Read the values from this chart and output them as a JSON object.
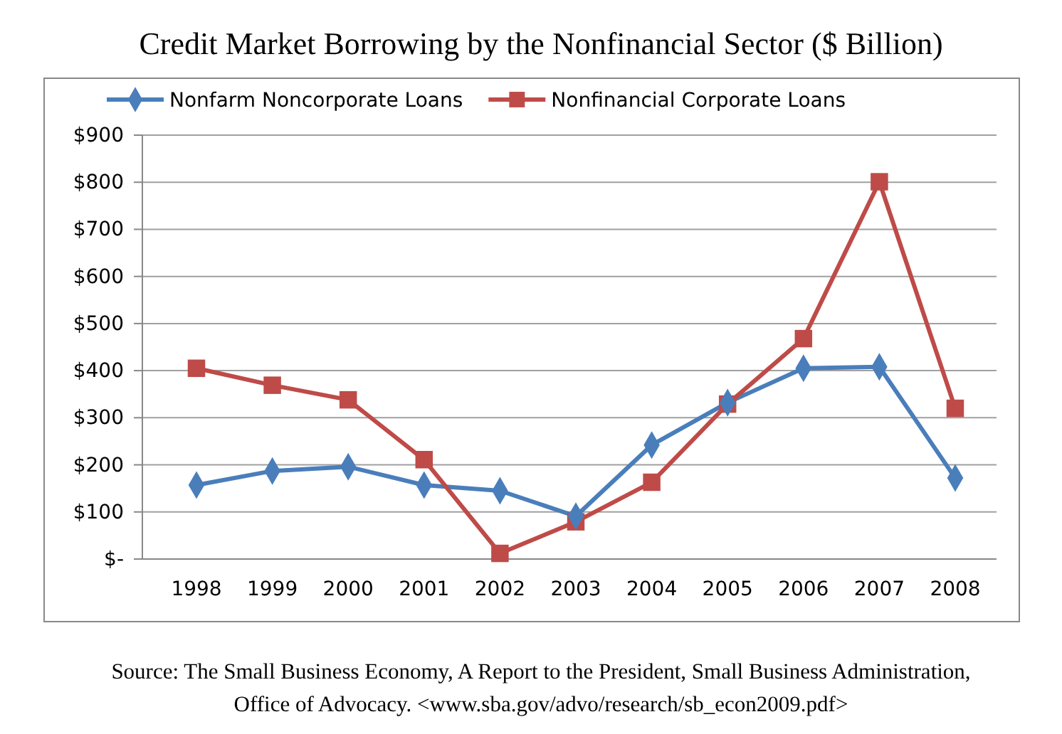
{
  "chart_data": {
    "type": "line",
    "title": "Credit Market Borrowing by the Nonfinancial Sector ($ Billion)",
    "categories": [
      "1998",
      "1999",
      "2000",
      "2001",
      "2002",
      "2003",
      "2004",
      "2005",
      "2006",
      "2007",
      "2008"
    ],
    "series": [
      {
        "name": "Nonfarm Noncorporate Loans",
        "color": "#4a7ebb",
        "marker": "diamond",
        "values": [
          157,
          187,
          196,
          157,
          145,
          91,
          242,
          332,
          405,
          408,
          172
        ]
      },
      {
        "name": "Nonfinancial Corporate Loans",
        "color": "#be4b48",
        "marker": "square",
        "values": [
          405,
          369,
          338,
          211,
          12,
          79,
          163,
          329,
          468,
          801,
          320
        ]
      }
    ],
    "ylim": [
      0,
      900
    ],
    "yticks": [
      {
        "value": 0,
        "label": "$-"
      },
      {
        "value": 100,
        "label": "$100"
      },
      {
        "value": 200,
        "label": "$200"
      },
      {
        "value": 300,
        "label": "$300"
      },
      {
        "value": 400,
        "label": "$400"
      },
      {
        "value": 500,
        "label": "$500"
      },
      {
        "value": 600,
        "label": "$600"
      },
      {
        "value": 700,
        "label": "$700"
      },
      {
        "value": 800,
        "label": "$800"
      },
      {
        "value": 900,
        "label": "$900"
      }
    ],
    "grid": "y",
    "legend": "top",
    "line_style": "solid",
    "annotations": [
      "Source: The Small Business Economy, A Report to the President, Small Business Administration,",
      "Office of Advocacy. <www.sba.gov/advo/research/sb_econ2009.pdf>"
    ]
  }
}
